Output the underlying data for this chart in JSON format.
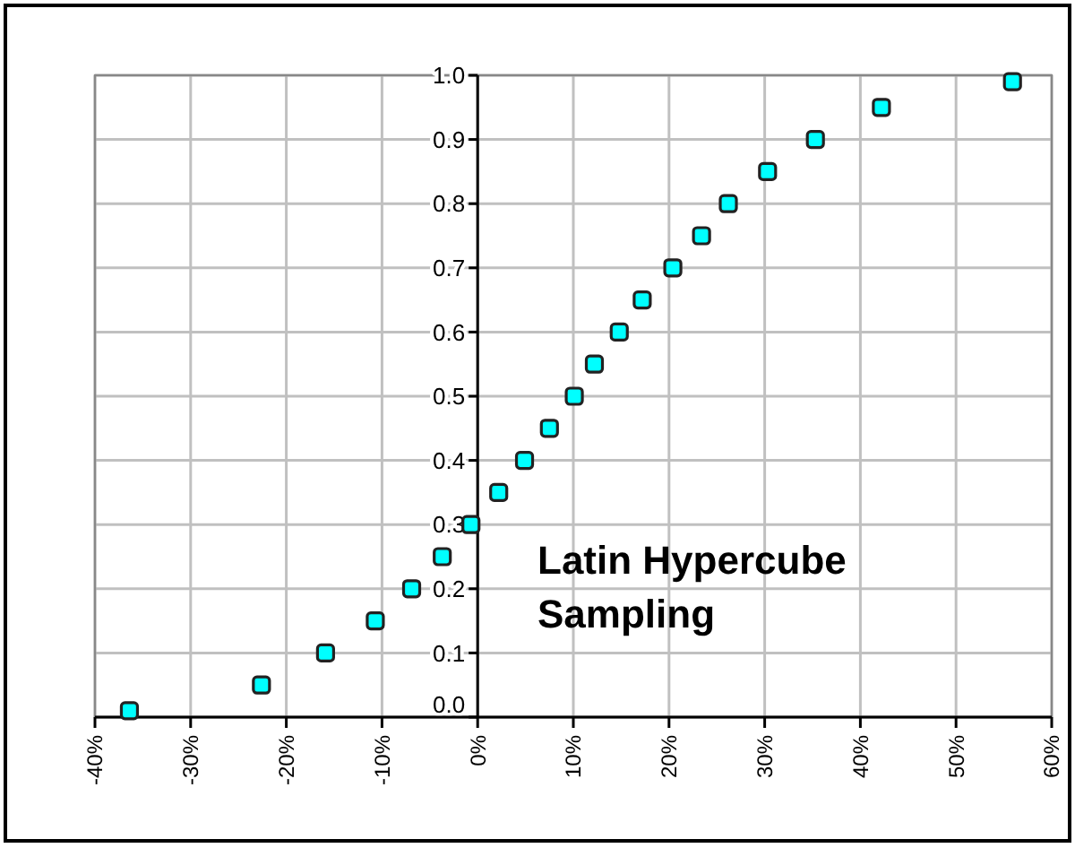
{
  "chart_data": {
    "type": "scatter",
    "marker": "square",
    "grid": true,
    "x": [
      -36.4,
      -22.6,
      -15.9,
      -10.7,
      -6.9,
      -3.7,
      -0.7,
      2.2,
      4.9,
      7.5,
      10.1,
      12.2,
      14.8,
      17.2,
      20.4,
      23.4,
      26.2,
      30.3,
      35.3,
      42.2,
      55.9
    ],
    "series": [
      {
        "color": "#00ffff",
        "values": [
          0.01,
          0.05,
          0.1,
          0.15,
          0.2,
          0.25,
          0.3,
          0.35,
          0.4,
          0.45,
          0.5,
          0.55,
          0.6,
          0.65,
          0.7,
          0.75,
          0.8,
          0.85,
          0.9,
          0.95,
          0.99
        ]
      }
    ],
    "xlim": [
      -40,
      60
    ],
    "xticks": [
      {
        "value": -40,
        "label": "-40%"
      },
      {
        "value": -30,
        "label": "-30%"
      },
      {
        "value": -20,
        "label": "-20%"
      },
      {
        "value": -10,
        "label": "-10%"
      },
      {
        "value": 0,
        "label": "0%"
      },
      {
        "value": 10,
        "label": "10%"
      },
      {
        "value": 20,
        "label": "20%"
      },
      {
        "value": 30,
        "label": "30%"
      },
      {
        "value": 40,
        "label": "40%"
      },
      {
        "value": 50,
        "label": "50%"
      },
      {
        "value": 60,
        "label": "60%"
      }
    ],
    "ylim": [
      0,
      1
    ],
    "yticks": [
      {
        "value": 0,
        "label": "0.0"
      },
      {
        "value": 0.1,
        "label": "0.1"
      },
      {
        "value": 0.2,
        "label": "0.2"
      },
      {
        "value": 0.3,
        "label": "0.3"
      },
      {
        "value": 0.4,
        "label": "0.4"
      },
      {
        "value": 0.5,
        "label": "0.5"
      },
      {
        "value": 0.6,
        "label": "0.6"
      },
      {
        "value": 0.7,
        "label": "0.7"
      },
      {
        "value": 0.8,
        "label": "0.8"
      },
      {
        "value": 0.9,
        "label": "0.9"
      },
      {
        "value": 1,
        "label": "1.0"
      }
    ],
    "annotations": [
      "Latin Hypercube\nSampling"
    ]
  }
}
